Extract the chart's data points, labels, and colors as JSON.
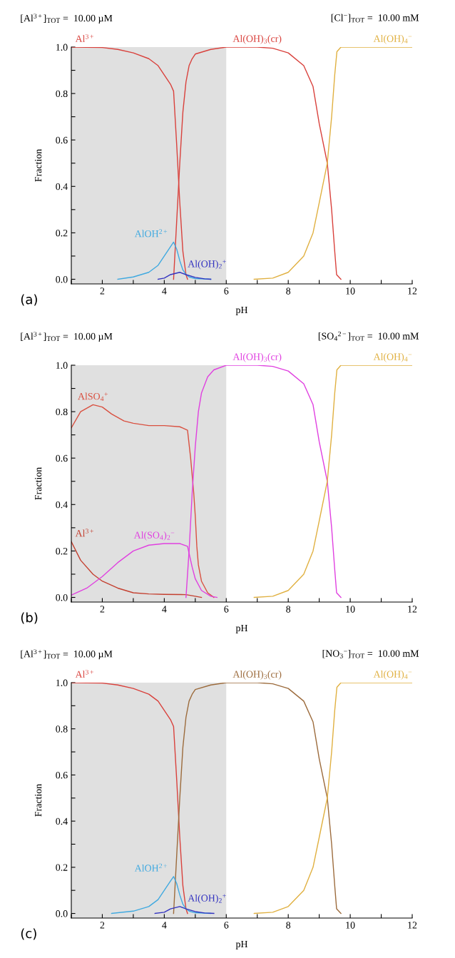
{
  "chart_data": [
    {
      "type": "line",
      "xlabel": "pH",
      "ylabel": "Fraction",
      "annotations": [
        "[Al$^{3+}$]$_{TOT}$ =  10.00 µM",
        "[Cl$^{−}$]$_{TOT}$ =  10.00 mM",
        "(a)"
      ],
      "xlim": [
        1,
        12
      ],
      "ylim": [
        -0.02,
        1.0
      ],
      "xticks": [
        {
          "value": 1,
          "label": null
        },
        2,
        {
          "value": 3,
          "label": null
        },
        4,
        {
          "value": 5,
          "label": null
        },
        6,
        {
          "value": 7,
          "label": null
        },
        8,
        {
          "value": 9,
          "label": null
        },
        10,
        {
          "value": 11,
          "label": null
        },
        12
      ],
      "yticks": [
        {
          "value": 0,
          "label": "0.0"
        },
        {
          "value": 0.1,
          "label": null
        },
        0.2,
        {
          "value": 0.3,
          "label": null
        },
        0.4,
        {
          "value": 0.5,
          "label": null
        },
        0.6,
        {
          "value": 0.7,
          "label": null
        },
        0.8,
        {
          "value": 0.9,
          "label": null
        },
        {
          "value": 1,
          "label": "1.0"
        }
      ],
      "bands": [
        {
          "axis": "x",
          "from": 1,
          "to": 6,
          "color": "#e0e0e0"
        }
      ],
      "grid": false,
      "legend": false,
      "marker": "none",
      "line_style": "solid",
      "series": [
        {
          "name": "Al$^{3+}$",
          "color": "#d9413c",
          "x": [
            1,
            2,
            2.5,
            3,
            3.5,
            3.8,
            4.0,
            4.2,
            4.3,
            4.4,
            4.5,
            4.6,
            4.7,
            4.75
          ],
          "values": [
            1.0,
            0.998,
            0.99,
            0.975,
            0.95,
            0.92,
            0.88,
            0.84,
            0.81,
            0.58,
            0.33,
            0.12,
            0.02,
            0
          ]
        },
        {
          "name": "Al(OH)$_{3}$(cr)",
          "color": "#d9413c",
          "x": [
            4.3,
            4.4,
            4.5,
            4.6,
            4.7,
            4.8,
            4.9,
            5.0,
            5.5,
            6,
            7,
            7.5,
            8,
            8.5,
            8.8,
            9.0,
            9.26,
            9.4,
            9.5,
            9.56,
            9.7
          ],
          "values": [
            0,
            0.25,
            0.5,
            0.72,
            0.85,
            0.92,
            0.95,
            0.97,
            0.99,
            1.0,
            1.0,
            0.995,
            0.975,
            0.92,
            0.83,
            0.67,
            0.5,
            0.3,
            0.12,
            0.02,
            0
          ]
        },
        {
          "name": "Al(OH)$_{4}$$^{−}$",
          "color": "#e0b040",
          "x": [
            6.9,
            7.5,
            8,
            8.5,
            8.8,
            9.0,
            9.26,
            9.4,
            9.5,
            9.57,
            9.7,
            12
          ],
          "values": [
            0,
            0.005,
            0.03,
            0.1,
            0.2,
            0.33,
            0.5,
            0.7,
            0.88,
            0.98,
            1.0,
            1.0
          ]
        },
        {
          "name": "AlOH$^{2+}$",
          "color": "#3fa9e0",
          "x": [
            2.5,
            3,
            3.5,
            3.8,
            4.0,
            4.2,
            4.3,
            4.4,
            4.5,
            4.6,
            4.7,
            4.8,
            5.0,
            5.5
          ],
          "values": [
            0,
            0.01,
            0.03,
            0.06,
            0.1,
            0.14,
            0.16,
            0.13,
            0.08,
            0.04,
            0.02,
            0.01,
            0.003,
            0
          ]
        },
        {
          "name": "Al(OH)$_{2}$$^{+}$",
          "color": "#3333c0",
          "x": [
            3.8,
            4.0,
            4.2,
            4.5,
            4.7,
            5.0,
            5.3,
            5.5
          ],
          "values": [
            0,
            0.005,
            0.02,
            0.03,
            0.02,
            0.008,
            0.002,
            0
          ]
        }
      ]
    },
    {
      "type": "line",
      "xlabel": "pH",
      "ylabel": "Fraction",
      "annotations": [
        "[Al$^{3+}$]$_{TOT}$ =  10.00 µM",
        "[SO$_{4}$$^{2−}$]$_{TOT}$ =  10.00 mM",
        "(b)"
      ],
      "xlim": [
        1,
        12
      ],
      "ylim": [
        -0.02,
        1.0
      ],
      "xticks": [
        {
          "value": 1,
          "label": null
        },
        2,
        {
          "value": 3,
          "label": null
        },
        4,
        {
          "value": 5,
          "label": null
        },
        6,
        {
          "value": 7,
          "label": null
        },
        8,
        {
          "value": 9,
          "label": null
        },
        10,
        {
          "value": 11,
          "label": null
        },
        12
      ],
      "yticks": [
        {
          "value": 0,
          "label": "0.0"
        },
        {
          "value": 0.1,
          "label": null
        },
        0.2,
        {
          "value": 0.3,
          "label": null
        },
        0.4,
        {
          "value": 0.5,
          "label": null
        },
        0.6,
        {
          "value": 0.7,
          "label": null
        },
        0.8,
        {
          "value": 0.9,
          "label": null
        },
        {
          "value": 1,
          "label": "1.0"
        }
      ],
      "bands": [
        {
          "axis": "x",
          "from": 1,
          "to": 6,
          "color": "#e0e0e0"
        }
      ],
      "grid": false,
      "legend": false,
      "marker": "none",
      "line_style": "solid",
      "series": [
        {
          "name": "AlSO$_{4}$$^{+}$",
          "color": "#d95040",
          "x": [
            1,
            1.3,
            1.7,
            2,
            2.3,
            2.7,
            3,
            3.5,
            4,
            4.5,
            4.75,
            4.85,
            4.95,
            5.0,
            5.05,
            5.1,
            5.2,
            5.4,
            5.6
          ],
          "values": [
            0.73,
            0.8,
            0.83,
            0.82,
            0.79,
            0.76,
            0.75,
            0.74,
            0.74,
            0.735,
            0.72,
            0.6,
            0.45,
            0.35,
            0.22,
            0.14,
            0.07,
            0.02,
            0
          ]
        },
        {
          "name": "Al$^{3+}$",
          "color": "#c44030",
          "x": [
            1,
            1.3,
            1.7,
            2,
            2.5,
            3,
            3.5,
            4,
            4.7,
            5.0,
            5.2
          ],
          "values": [
            0.24,
            0.16,
            0.1,
            0.07,
            0.04,
            0.02,
            0.015,
            0.013,
            0.012,
            0.005,
            0
          ]
        },
        {
          "name": "Al(SO$_{4}$)$_{2}$$^{−}$",
          "color": "#e040e0",
          "x": [
            1,
            1.5,
            2,
            2.5,
            3,
            3.5,
            4,
            4.5,
            4.75,
            4.9,
            5.0,
            5.2,
            5.5,
            5.7
          ],
          "values": [
            0.01,
            0.04,
            0.09,
            0.15,
            0.2,
            0.225,
            0.232,
            0.232,
            0.22,
            0.13,
            0.08,
            0.03,
            0.005,
            0
          ]
        },
        {
          "name": "Al(OH)$_{3}$(cr)",
          "color": "#e040e0",
          "x": [
            4.7,
            4.8,
            4.9,
            5.0,
            5.1,
            5.2,
            5.4,
            5.6,
            6,
            7,
            7.5,
            8,
            8.5,
            8.8,
            9.0,
            9.26,
            9.4,
            9.5,
            9.56,
            9.7
          ],
          "values": [
            0,
            0.2,
            0.45,
            0.65,
            0.8,
            0.88,
            0.95,
            0.98,
            1.0,
            1.0,
            0.995,
            0.975,
            0.92,
            0.83,
            0.67,
            0.5,
            0.3,
            0.12,
            0.02,
            0
          ]
        },
        {
          "name": "Al(OH)$_{4}$$^{−}$",
          "color": "#e0b040",
          "x": [
            6.9,
            7.5,
            8,
            8.5,
            8.8,
            9.0,
            9.26,
            9.4,
            9.5,
            9.57,
            9.7,
            12
          ],
          "values": [
            0,
            0.005,
            0.03,
            0.1,
            0.2,
            0.33,
            0.5,
            0.7,
            0.88,
            0.98,
            1.0,
            1.0
          ]
        }
      ]
    },
    {
      "type": "line",
      "xlabel": "pH",
      "ylabel": "Fraction",
      "annotations": [
        "[Al$^{3+}$]$_{TOT}$ =  10.00 µM",
        "[NO$_{3}$$^{−}$]$_{TOT}$ =  10.00 mM",
        "(c)"
      ],
      "xlim": [
        1,
        12
      ],
      "ylim": [
        -0.02,
        1.0
      ],
      "xticks": [
        {
          "value": 1,
          "label": null
        },
        2,
        {
          "value": 3,
          "label": null
        },
        4,
        {
          "value": 5,
          "label": null
        },
        6,
        {
          "value": 7,
          "label": null
        },
        8,
        {
          "value": 9,
          "label": null
        },
        10,
        {
          "value": 11,
          "label": null
        },
        12
      ],
      "yticks": [
        {
          "value": 0,
          "label": "0.0"
        },
        {
          "value": 0.1,
          "label": null
        },
        0.2,
        {
          "value": 0.3,
          "label": null
        },
        0.4,
        {
          "value": 0.5,
          "label": null
        },
        0.6,
        {
          "value": 0.7,
          "label": null
        },
        0.8,
        {
          "value": 0.9,
          "label": null
        },
        {
          "value": 1,
          "label": "1.0"
        }
      ],
      "bands": [
        {
          "axis": "x",
          "from": 1,
          "to": 6,
          "color": "#e0e0e0"
        }
      ],
      "grid": false,
      "legend": false,
      "marker": "none",
      "line_style": "solid",
      "series": [
        {
          "name": "Al$^{3+}$",
          "color": "#d9413c",
          "x": [
            1,
            2,
            2.5,
            3,
            3.5,
            3.8,
            4.0,
            4.2,
            4.3,
            4.4,
            4.5,
            4.6,
            4.7,
            4.75
          ],
          "values": [
            1.0,
            0.998,
            0.99,
            0.975,
            0.95,
            0.92,
            0.88,
            0.84,
            0.81,
            0.58,
            0.33,
            0.12,
            0.02,
            0
          ]
        },
        {
          "name": "Al(OH)$_{3}$(cr)",
          "color": "#9c6b3c",
          "x": [
            4.3,
            4.4,
            4.5,
            4.6,
            4.7,
            4.8,
            4.9,
            5.0,
            5.5,
            6,
            7,
            7.5,
            8,
            8.5,
            8.8,
            9.0,
            9.26,
            9.4,
            9.5,
            9.56,
            9.7
          ],
          "values": [
            0,
            0.25,
            0.5,
            0.72,
            0.85,
            0.92,
            0.95,
            0.97,
            0.99,
            1.0,
            1.0,
            0.995,
            0.975,
            0.92,
            0.83,
            0.67,
            0.5,
            0.3,
            0.12,
            0.02,
            0
          ]
        },
        {
          "name": "Al(OH)$_{4}$$^{−}$",
          "color": "#e0b040",
          "x": [
            6.9,
            7.5,
            8,
            8.5,
            8.8,
            9.0,
            9.26,
            9.4,
            9.5,
            9.57,
            9.7,
            12
          ],
          "values": [
            0,
            0.005,
            0.03,
            0.1,
            0.2,
            0.33,
            0.5,
            0.7,
            0.88,
            0.98,
            1.0,
            1.0
          ]
        },
        {
          "name": "AlOH$^{2+}$",
          "color": "#3fa9e0",
          "x": [
            2.3,
            3,
            3.5,
            3.8,
            4.0,
            4.2,
            4.3,
            4.4,
            4.5,
            4.6,
            4.7,
            4.8,
            5.0,
            5.5
          ],
          "values": [
            0,
            0.01,
            0.03,
            0.06,
            0.1,
            0.14,
            0.16,
            0.13,
            0.08,
            0.04,
            0.02,
            0.01,
            0.003,
            0
          ]
        },
        {
          "name": "Al(OH)$_{2}$$^{+}$",
          "color": "#3333c0",
          "x": [
            3.7,
            4.0,
            4.2,
            4.5,
            4.7,
            5.0,
            5.3,
            5.6
          ],
          "values": [
            0,
            0.005,
            0.02,
            0.03,
            0.02,
            0.008,
            0.002,
            0
          ]
        }
      ]
    }
  ]
}
